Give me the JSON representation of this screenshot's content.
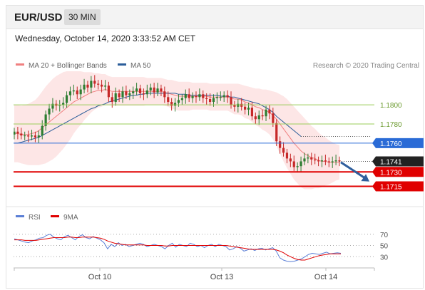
{
  "header": {
    "pair": "EUR/USD",
    "timeframe": "30 MIN",
    "timestamp": "Wednesday, October 14, 2020 3:33:52 AM CET"
  },
  "colors": {
    "bollinger": "#f08080",
    "bollinger_fill": "#fde3e3",
    "ma50": "#2b5d9a",
    "up_candle": "#2e7d32",
    "down_candle": "#c62828",
    "green_level": "#9acd5a",
    "blue_level": "#2a6bd6",
    "red_level": "#e00000",
    "last_price": "#222222",
    "arrow": "#2f5e9c",
    "rsi": "#5b7fd6",
    "rsi_ma": "#e00000"
  },
  "chart_data": [
    {
      "type": "candlestick",
      "title": "",
      "legend": [
        {
          "name": "MA 20 + Bollinger Bands",
          "color": "#f08080"
        },
        {
          "name": "MA 50",
          "color": "#2b5d9a"
        }
      ],
      "legend_placement": "top-left",
      "credit": "Research © 2020 Trading Central",
      "x_ticks": [
        "Oct 10",
        "Oct 13",
        "Oct 14"
      ],
      "y_range": [
        1.1696,
        1.1835
      ],
      "grid": false,
      "levels": [
        {
          "value": 1.18,
          "label": "1.1800",
          "kind": "resistance",
          "color": "#9acd5a"
        },
        {
          "value": 1.178,
          "label": "1.1780",
          "kind": "resistance",
          "color": "#9acd5a"
        },
        {
          "value": 1.176,
          "label": "1.1760",
          "kind": "pivot",
          "color": "#2a6bd6"
        },
        {
          "value": 1.1741,
          "label": "1.1741",
          "kind": "last",
          "color": "#222222"
        },
        {
          "value": 1.173,
          "label": "1.1730",
          "kind": "support",
          "color": "#e00000"
        },
        {
          "value": 1.1715,
          "label": "1.1715",
          "kind": "support",
          "color": "#e00000"
        }
      ],
      "arrow": {
        "from": 1.174,
        "to": 1.172,
        "direction": "down"
      },
      "close": [
        1.1772,
        1.177,
        1.1768,
        1.1768,
        1.1767,
        1.1768,
        1.1766,
        1.1768,
        1.1778,
        1.179,
        1.1796,
        1.1801,
        1.1799,
        1.18,
        1.1802,
        1.181,
        1.1814,
        1.1815,
        1.1811,
        1.1816,
        1.1821,
        1.1818,
        1.1825,
        1.1822,
        1.1821,
        1.1819,
        1.182,
        1.1808,
        1.1803,
        1.1812,
        1.1808,
        1.1814,
        1.181,
        1.1812,
        1.1814,
        1.1817,
        1.1812,
        1.1811,
        1.1815,
        1.1818,
        1.1813,
        1.1817,
        1.1814,
        1.1808,
        1.1803,
        1.1799,
        1.1802,
        1.1805,
        1.1807,
        1.1811,
        1.1807,
        1.1809,
        1.1808,
        1.1811,
        1.1807,
        1.1806,
        1.1803,
        1.1807,
        1.1808,
        1.1808,
        1.181,
        1.1808,
        1.18,
        1.1798,
        1.1801,
        1.1798,
        1.1795,
        1.1797,
        1.1788,
        1.1785,
        1.1789,
        1.1788,
        1.1795,
        1.1791,
        1.1781,
        1.1762,
        1.1755,
        1.175,
        1.1744,
        1.1741,
        1.1735,
        1.1736,
        1.1741,
        1.1744,
        1.1745,
        1.1743,
        1.1742,
        1.1741,
        1.1742,
        1.1741,
        1.174,
        1.1741,
        1.1742,
        1.1741
      ],
      "ma20": [
        1.177,
        1.177,
        1.1769,
        1.1769,
        1.1769,
        1.177,
        1.1771,
        1.1773,
        1.1776,
        1.1779,
        1.1782,
        1.1785,
        1.1788,
        1.1791,
        1.1794,
        1.1797,
        1.18,
        1.1803,
        1.1805,
        1.1807,
        1.1809,
        1.1811,
        1.1813,
        1.1814,
        1.1815,
        1.1815,
        1.1816,
        1.1815,
        1.1814,
        1.1814,
        1.1814,
        1.1814,
        1.1814,
        1.1814,
        1.1814,
        1.1814,
        1.1814,
        1.1814,
        1.1814,
        1.1814,
        1.1814,
        1.1814,
        1.1814,
        1.1813,
        1.1812,
        1.1811,
        1.181,
        1.1809,
        1.1809,
        1.1809,
        1.1809,
        1.1809,
        1.1809,
        1.1809,
        1.1809,
        1.1809,
        1.1808,
        1.1808,
        1.1808,
        1.1808,
        1.1808,
        1.1808,
        1.1807,
        1.1806,
        1.1806,
        1.1805,
        1.1803,
        1.1802,
        1.18,
        1.1798,
        1.1797,
        1.1795,
        1.1794,
        1.1792,
        1.1789,
        1.1785,
        1.178,
        1.1775,
        1.177,
        1.1765,
        1.176,
        1.1756,
        1.1752,
        1.1749,
        1.1747,
        1.1745,
        1.1744,
        1.1742,
        1.1741,
        1.1741,
        1.174,
        1.174,
        1.174,
        1.174
      ],
      "bb_width": [
        0.003,
        0.003,
        0.003,
        0.0031,
        0.0032,
        0.0033,
        0.0034,
        0.0036,
        0.0038,
        0.004,
        0.0041,
        0.0042,
        0.0042,
        0.0041,
        0.004,
        0.0038,
        0.0036,
        0.0033,
        0.003,
        0.0028,
        0.0025,
        0.0023,
        0.0021,
        0.0019,
        0.0018,
        0.0017,
        0.0016,
        0.0015,
        0.0015,
        0.0015,
        0.0015,
        0.0015,
        0.0015,
        0.0015,
        0.0015,
        0.0015,
        0.0015,
        0.0015,
        0.0014,
        0.0014,
        0.0014,
        0.0014,
        0.0014,
        0.0014,
        0.0014,
        0.0015,
        0.0015,
        0.0015,
        0.0015,
        0.0015,
        0.0015,
        0.0014,
        0.0014,
        0.0014,
        0.0014,
        0.0014,
        0.0014,
        0.0014,
        0.0014,
        0.0014,
        0.0014,
        0.0014,
        0.0015,
        0.0016,
        0.0016,
        0.0016,
        0.0017,
        0.0017,
        0.0018,
        0.0019,
        0.002,
        0.0021,
        0.0022,
        0.0023,
        0.0025,
        0.0028,
        0.0031,
        0.0034,
        0.0036,
        0.0037,
        0.0038,
        0.0038,
        0.0038,
        0.0037,
        0.0035,
        0.0033,
        0.0031,
        0.0029,
        0.0027,
        0.0025,
        0.0023,
        0.0021,
        0.0019,
        0.0018
      ],
      "ma50": [
        1.176,
        1.176,
        1.1761,
        1.1762,
        1.1763,
        1.1764,
        1.1765,
        1.1766,
        1.1768,
        1.177,
        1.1772,
        1.1774,
        1.1776,
        1.1778,
        1.178,
        1.1782,
        1.1784,
        1.1786,
        1.1788,
        1.179,
        1.1792,
        1.1794,
        1.1796,
        1.1797,
        1.1799,
        1.18,
        1.1801,
        1.1803,
        1.1804,
        1.1805,
        1.1806,
        1.1807,
        1.1808,
        1.1809,
        1.181,
        1.181,
        1.1811,
        1.1811,
        1.1812,
        1.1812,
        1.1812,
        1.1812,
        1.1812,
        1.1812,
        1.1812,
        1.1812,
        1.1812,
        1.1811,
        1.1811,
        1.1811,
        1.181,
        1.181,
        1.181,
        1.181,
        1.181,
        1.181,
        1.181,
        1.181,
        1.181,
        1.1809,
        1.1809,
        1.1809,
        1.1808,
        1.1808,
        1.1807,
        1.1806,
        1.1805,
        1.1804,
        1.1803,
        1.1802,
        1.1801,
        1.1799,
        1.1797,
        1.1795,
        1.1792,
        1.1788,
        1.1785,
        1.1782,
        1.1779,
        1.1776,
        1.1773,
        1.177,
        1.1767
      ]
    },
    {
      "type": "line",
      "title": "",
      "legend": [
        {
          "name": "RSI",
          "color": "#5b7fd6"
        },
        {
          "name": "9MA",
          "color": "#e00000"
        }
      ],
      "legend_placement": "top-left",
      "y_ticks": [
        "70",
        "50",
        "30"
      ],
      "y_range": [
        10,
        90
      ],
      "rsi": [
        62,
        60,
        58,
        56,
        55,
        58,
        60,
        63,
        64,
        68,
        70,
        65,
        62,
        60,
        66,
        68,
        64,
        60,
        66,
        69,
        64,
        62,
        66,
        63,
        60,
        55,
        44,
        52,
        48,
        55,
        50,
        52,
        48,
        50,
        52,
        54,
        52,
        48,
        50,
        52,
        50,
        48,
        44,
        50,
        54,
        47,
        52,
        50,
        48,
        54,
        52,
        48,
        50,
        46,
        50,
        52,
        48,
        52,
        50,
        48,
        42,
        44,
        48,
        45,
        40,
        42,
        44,
        41,
        44,
        45,
        42,
        44,
        46,
        40,
        28,
        24,
        22,
        21,
        22,
        24,
        26,
        30,
        34,
        36,
        35,
        34,
        36,
        38,
        35,
        36,
        37,
        36
      ],
      "rsi_ma": [
        60,
        60,
        60,
        59,
        59,
        59,
        59,
        60,
        61,
        62,
        63,
        64,
        64,
        64,
        64,
        65,
        65,
        64,
        64,
        65,
        65,
        65,
        65,
        64,
        63,
        61,
        58,
        56,
        54,
        53,
        52,
        51,
        51,
        51,
        51,
        51,
        51,
        50,
        50,
        50,
        50,
        50,
        49,
        49,
        50,
        50,
        50,
        50,
        50,
        50,
        50,
        50,
        50,
        50,
        50,
        50,
        50,
        50,
        50,
        50,
        49,
        48,
        47,
        46,
        45,
        44,
        43,
        43,
        43,
        43,
        43,
        43,
        43,
        42,
        40,
        37,
        33,
        30,
        27,
        25,
        24,
        24,
        26,
        28,
        30,
        32,
        33,
        34,
        35,
        35,
        35,
        35
      ]
    }
  ]
}
